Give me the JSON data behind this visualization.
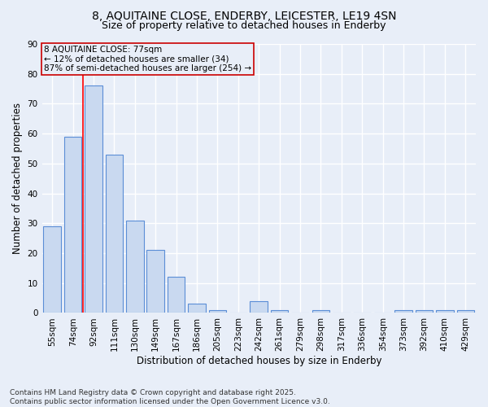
{
  "title_line1": "8, AQUITAINE CLOSE, ENDERBY, LEICESTER, LE19 4SN",
  "title_line2": "Size of property relative to detached houses in Enderby",
  "xlabel": "Distribution of detached houses by size in Enderby",
  "ylabel": "Number of detached properties",
  "categories": [
    "55sqm",
    "74sqm",
    "92sqm",
    "111sqm",
    "130sqm",
    "149sqm",
    "167sqm",
    "186sqm",
    "205sqm",
    "223sqm",
    "242sqm",
    "261sqm",
    "279sqm",
    "298sqm",
    "317sqm",
    "336sqm",
    "354sqm",
    "373sqm",
    "392sqm",
    "410sqm",
    "429sqm"
  ],
  "values": [
    29,
    59,
    76,
    53,
    31,
    21,
    12,
    3,
    1,
    0,
    4,
    1,
    0,
    1,
    0,
    0,
    0,
    1,
    1,
    1,
    1
  ],
  "bar_color": "#c9d9f0",
  "bar_edge_color": "#5b8ed6",
  "background_color": "#e8eef8",
  "grid_color": "#ffffff",
  "annotation_line1": "8 AQUITAINE CLOSE: 77sqm",
  "annotation_line2": "← 12% of detached houses are smaller (34)",
  "annotation_line3": "87% of semi-detached houses are larger (254) →",
  "annotation_box_edge_color": "#cc0000",
  "red_line_x": 1.5,
  "ylim": [
    0,
    90
  ],
  "yticks": [
    0,
    10,
    20,
    30,
    40,
    50,
    60,
    70,
    80,
    90
  ],
  "footnote": "Contains HM Land Registry data © Crown copyright and database right 2025.\nContains public sector information licensed under the Open Government Licence v3.0.",
  "title_fontsize": 10,
  "subtitle_fontsize": 9,
  "axis_label_fontsize": 8.5,
  "tick_fontsize": 7.5,
  "annotation_fontsize": 7.5,
  "footnote_fontsize": 6.5
}
